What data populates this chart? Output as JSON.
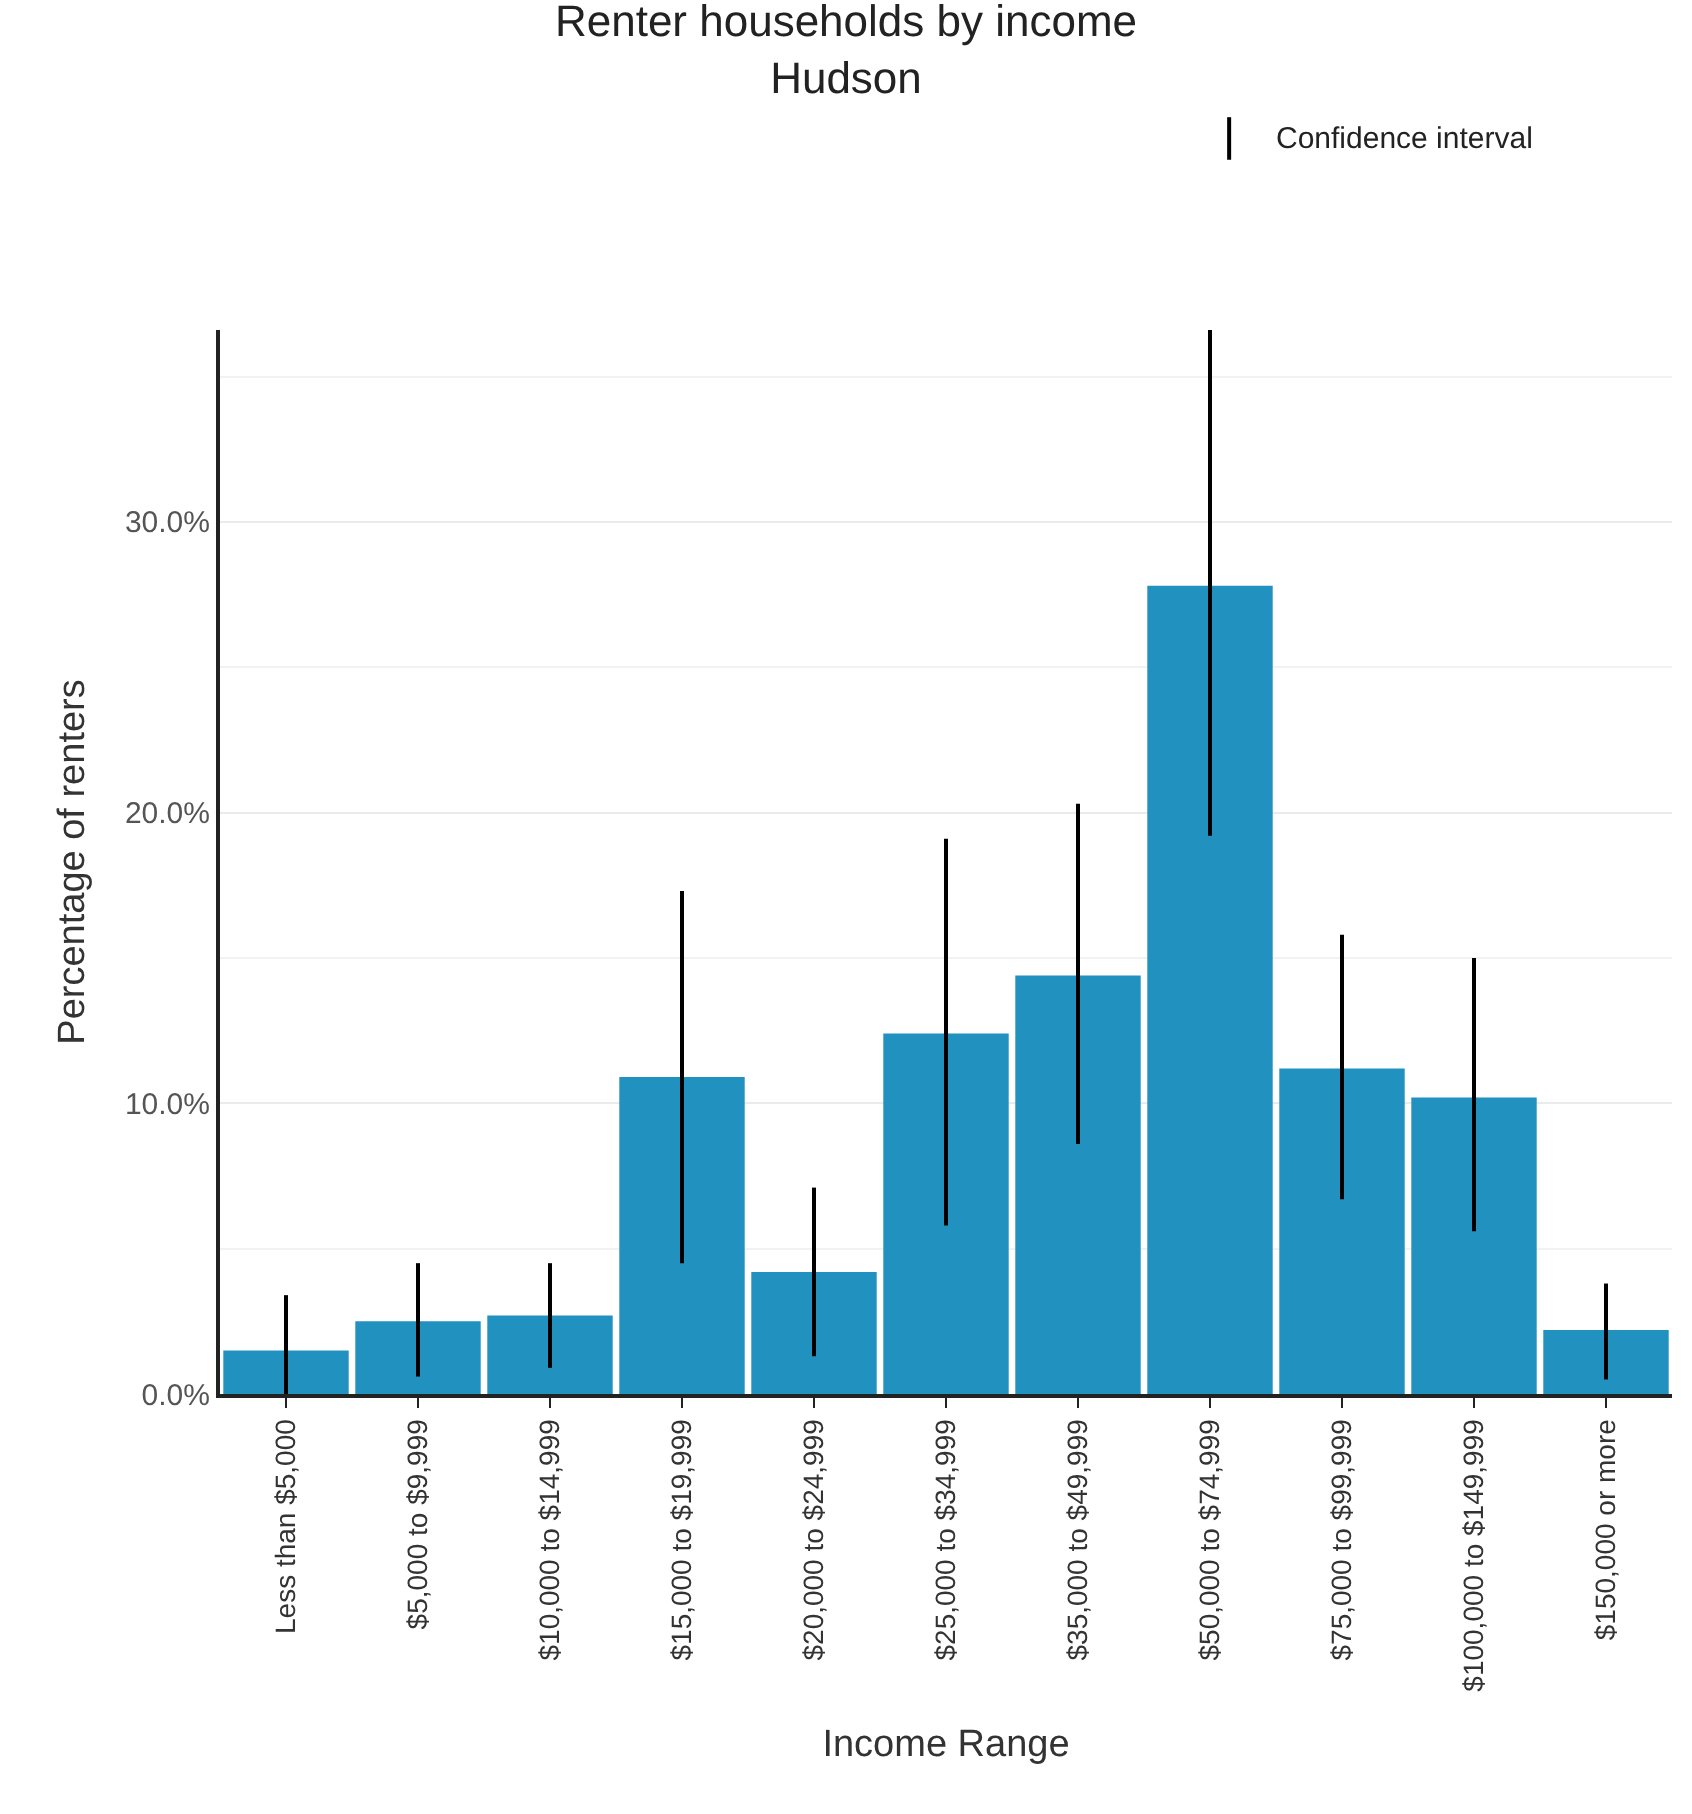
{
  "chart_data": {
    "type": "bar",
    "title": "Renter households by income",
    "subtitle": "Hudson",
    "xlabel": "Income Range",
    "ylabel": "Percentage of renters",
    "categories": [
      "Less than $5,000",
      "$5,000 to $9,999",
      "$10,000 to $14,999",
      "$15,000 to $19,999",
      "$20,000 to $24,999",
      "$25,000 to $34,999",
      "$35,000 to $49,999",
      "$50,000 to $74,999",
      "$75,000 to $99,999",
      "$100,000 to $149,999",
      "$150,000 or more"
    ],
    "values": [
      1.5,
      2.5,
      2.7,
      10.9,
      4.2,
      12.4,
      14.4,
      27.8,
      11.2,
      10.2,
      2.2
    ],
    "errors": [
      [
        0,
        3.4
      ],
      [
        0.6,
        4.5
      ],
      [
        0.9,
        4.5
      ],
      [
        4.5,
        17.3
      ],
      [
        1.3,
        7.1
      ],
      [
        5.8,
        19.1
      ],
      [
        8.6,
        20.3
      ],
      [
        19.2,
        36.6
      ],
      [
        6.7,
        15.8
      ],
      [
        5.6,
        15.0
      ],
      [
        0.5,
        3.8
      ]
    ],
    "color": "#2191c0",
    "ylim": [
      0,
      36.6
    ],
    "yticks": [
      {
        "value": 0,
        "label": "0.0%"
      },
      {
        "value": 10,
        "label": "10.0%"
      },
      {
        "value": 20,
        "label": "20.0%"
      },
      {
        "value": 30,
        "label": "30.0%"
      }
    ],
    "grid": "y",
    "annotations": [
      "Confidence interval"
    ]
  }
}
